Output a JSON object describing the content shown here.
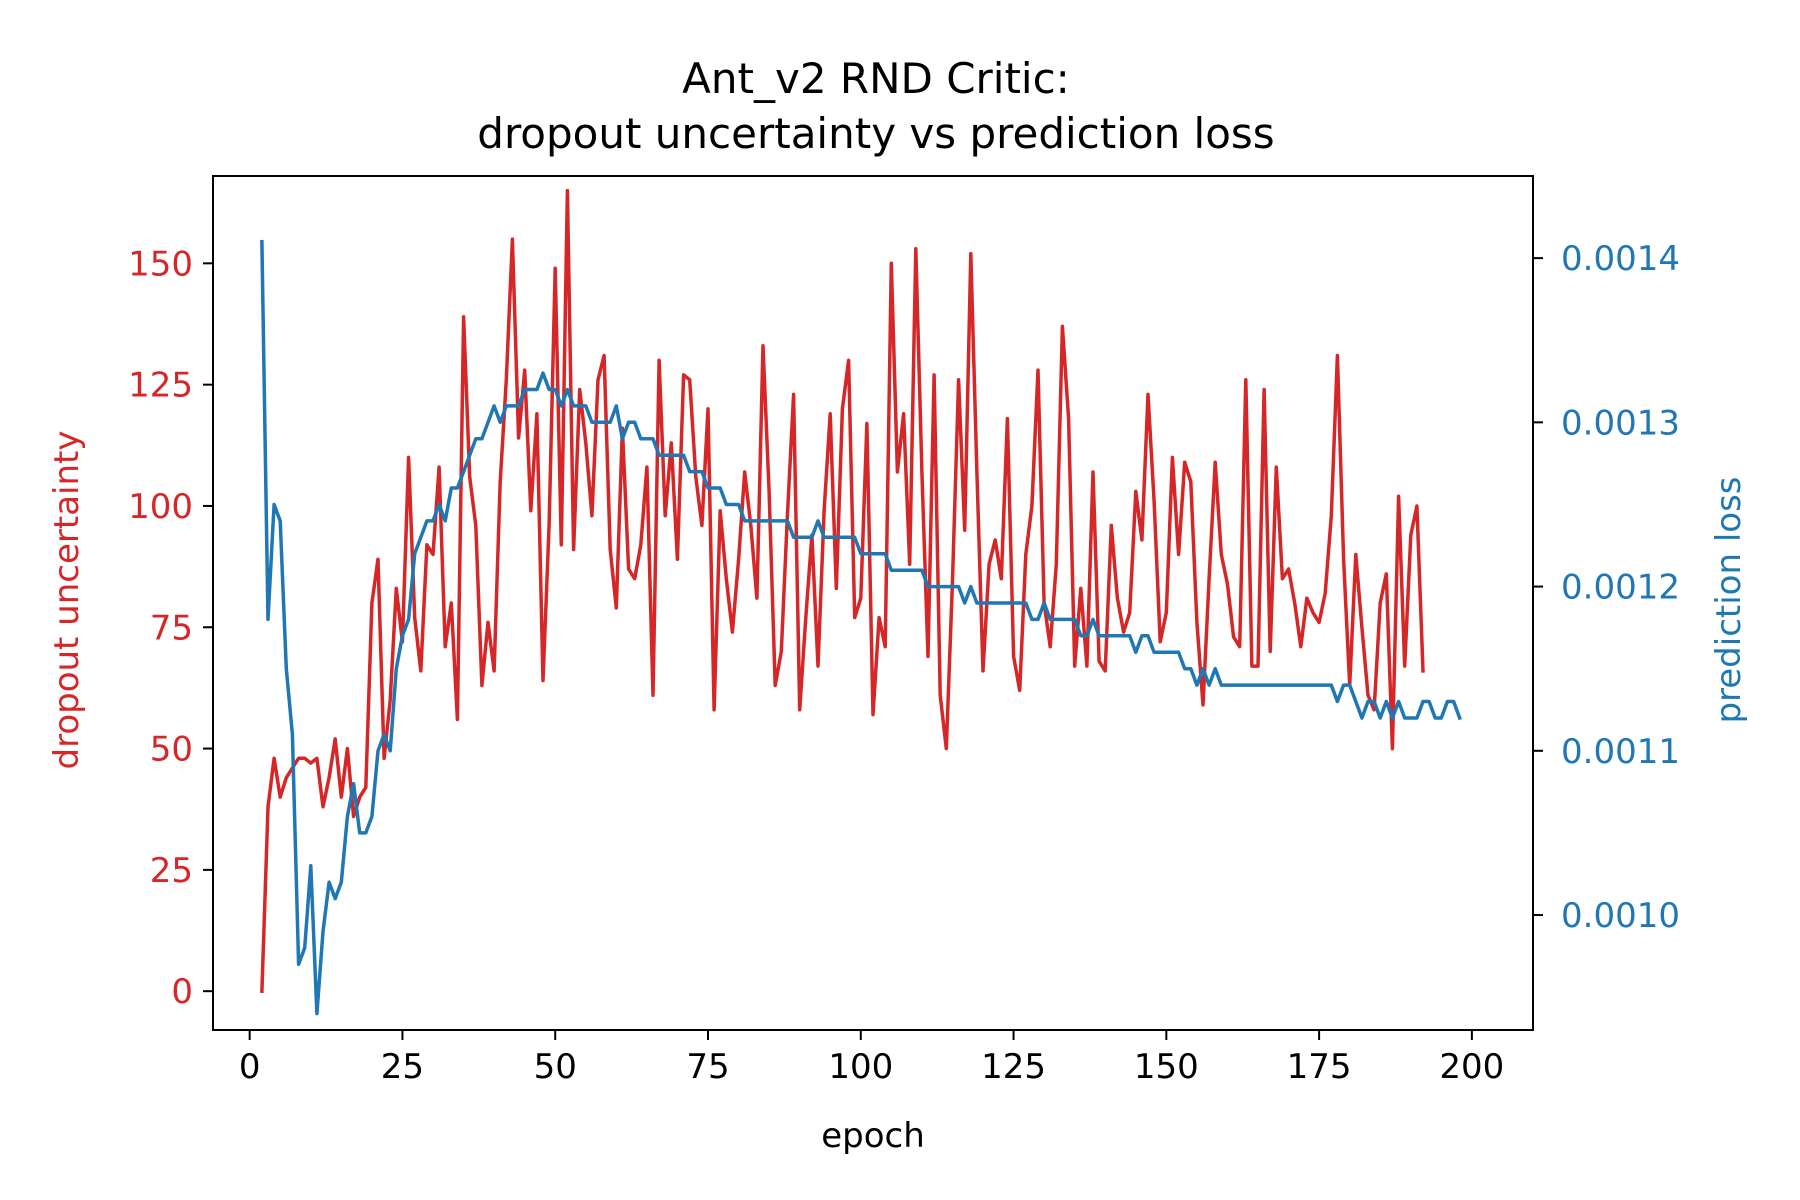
{
  "chart_data": {
    "type": "line",
    "title": [
      "Ant_v2 RND Critic:",
      "dropout uncertainty vs prediction loss"
    ],
    "xlabel": "epoch",
    "ylabel_left": "dropout uncertainty",
    "ylabel_right": "prediction loss",
    "xlim": [
      -6,
      210
    ],
    "ylim_left": [
      -8,
      168
    ],
    "ylim_right": [
      0.00093,
      0.00145
    ],
    "x_ticks": [
      0,
      25,
      50,
      75,
      100,
      125,
      150,
      175,
      200
    ],
    "x_tick_labels": [
      "0",
      "25",
      "50",
      "75",
      "100",
      "125",
      "150",
      "175",
      "200"
    ],
    "y_left_ticks": [
      0,
      25,
      50,
      75,
      100,
      125,
      150
    ],
    "y_left_tick_labels": [
      "0",
      "25",
      "50",
      "75",
      "100",
      "125",
      "150"
    ],
    "y_right_ticks": [
      0.001,
      0.0011,
      0.0012,
      0.0013,
      0.0014
    ],
    "y_right_tick_labels": [
      "0.0010",
      "0.0011",
      "0.0012",
      "0.0013",
      "0.0014"
    ],
    "grid": false,
    "colors": {
      "left": "#d62728",
      "right": "#1f77b4"
    },
    "series": [
      {
        "axis": "left",
        "x_start": 2,
        "x_step": 1,
        "values": [
          0,
          38,
          48,
          40,
          44,
          46,
          48,
          48,
          47,
          48,
          38,
          44,
          52,
          40,
          50,
          36,
          40,
          42,
          80,
          89,
          48,
          60,
          83,
          72,
          110,
          77,
          66,
          92,
          90,
          108,
          71,
          80,
          56,
          139,
          106,
          96,
          63,
          76,
          66,
          105,
          126,
          155,
          114,
          128,
          99,
          119,
          64,
          96,
          149,
          92,
          165,
          91,
          124,
          113,
          98,
          126,
          131,
          91,
          79,
          116,
          87,
          85,
          92,
          108,
          61,
          130,
          98,
          113,
          89,
          127,
          126,
          106,
          96,
          120,
          58,
          99,
          85,
          74,
          89,
          107,
          96,
          81,
          133,
          103,
          63,
          70,
          98,
          123,
          58,
          77,
          94,
          67,
          99,
          119,
          83,
          120,
          130,
          77,
          81,
          117,
          57,
          77,
          71,
          150,
          107,
          119,
          88,
          153,
          107,
          69,
          127,
          61,
          50,
          84,
          126,
          95,
          152,
          107,
          66,
          88,
          93,
          85,
          118,
          69,
          62,
          90,
          100,
          128,
          80,
          71,
          88,
          137,
          118,
          67,
          83,
          67,
          107,
          68,
          66,
          96,
          81,
          74,
          78,
          103,
          93,
          123,
          101,
          72,
          78,
          110,
          90,
          109,
          105,
          76,
          59,
          85,
          109,
          90,
          84,
          73,
          71,
          126,
          67,
          67,
          124,
          70,
          108,
          85,
          87,
          80,
          71,
          81,
          78,
          76,
          82,
          98,
          131,
          89,
          63,
          90,
          75,
          61,
          58,
          80,
          86,
          50,
          102,
          67,
          94,
          100,
          66
        ]
      },
      {
        "axis": "right",
        "x_start": 2,
        "x_step": 1,
        "values": [
          0.00141,
          0.00118,
          0.00125,
          0.00124,
          0.00115,
          0.00111,
          0.00097,
          0.00098,
          0.00103,
          0.00094,
          0.00099,
          0.00102,
          0.00101,
          0.00102,
          0.00106,
          0.00108,
          0.00105,
          0.00105,
          0.00106,
          0.0011,
          0.00111,
          0.0011,
          0.00115,
          0.00117,
          0.00118,
          0.00122,
          0.00123,
          0.00124,
          0.00124,
          0.00125,
          0.00124,
          0.00126,
          0.00126,
          0.00127,
          0.00128,
          0.00129,
          0.00129,
          0.0013,
          0.00131,
          0.0013,
          0.00131,
          0.00131,
          0.00131,
          0.00132,
          0.00132,
          0.00132,
          0.00133,
          0.00132,
          0.00132,
          0.00131,
          0.00132,
          0.00131,
          0.00131,
          0.00131,
          0.0013,
          0.0013,
          0.0013,
          0.0013,
          0.00131,
          0.00129,
          0.0013,
          0.0013,
          0.00129,
          0.00129,
          0.00129,
          0.00128,
          0.00128,
          0.00128,
          0.00128,
          0.00128,
          0.00127,
          0.00127,
          0.00127,
          0.00126,
          0.00126,
          0.00126,
          0.00125,
          0.00125,
          0.00125,
          0.00124,
          0.00124,
          0.00124,
          0.00124,
          0.00124,
          0.00124,
          0.00124,
          0.00124,
          0.00123,
          0.00123,
          0.00123,
          0.00123,
          0.00124,
          0.00123,
          0.00123,
          0.00123,
          0.00123,
          0.00123,
          0.00123,
          0.00122,
          0.00122,
          0.00122,
          0.00122,
          0.00122,
          0.00121,
          0.00121,
          0.00121,
          0.00121,
          0.00121,
          0.00121,
          0.0012,
          0.0012,
          0.0012,
          0.0012,
          0.0012,
          0.0012,
          0.00119,
          0.0012,
          0.00119,
          0.00119,
          0.00119,
          0.00119,
          0.00119,
          0.00119,
          0.00119,
          0.00119,
          0.00119,
          0.00118,
          0.00118,
          0.00119,
          0.00118,
          0.00118,
          0.00118,
          0.00118,
          0.00118,
          0.00117,
          0.00117,
          0.00118,
          0.00117,
          0.00117,
          0.00117,
          0.00117,
          0.00117,
          0.00117,
          0.00116,
          0.00117,
          0.00117,
          0.00116,
          0.00116,
          0.00116,
          0.00116,
          0.00116,
          0.00115,
          0.00115,
          0.00114,
          0.00115,
          0.00114,
          0.00115,
          0.00114,
          0.00114,
          0.00114,
          0.00114,
          0.00114,
          0.00114,
          0.00114,
          0.00114,
          0.00114,
          0.00114,
          0.00114,
          0.00114,
          0.00114,
          0.00114,
          0.00114,
          0.00114,
          0.00114,
          0.00114,
          0.00114,
          0.00113,
          0.00114,
          0.00114,
          0.00113,
          0.00112,
          0.00113,
          0.00113,
          0.00112,
          0.00113,
          0.00112,
          0.00113,
          0.00112,
          0.00112,
          0.00112,
          0.00113,
          0.00113,
          0.00112,
          0.00112,
          0.00113,
          0.00113,
          0.00112
        ]
      }
    ]
  }
}
